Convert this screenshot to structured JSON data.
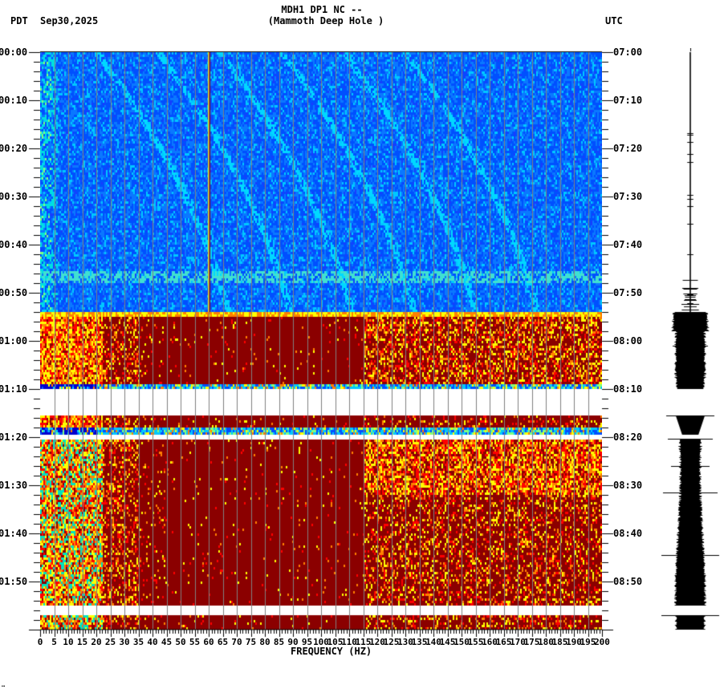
{
  "header": {
    "title_line1": "MDH1 DP1 NC --",
    "title_line2": "(Mammoth Deep Hole )",
    "timezone_left": "PDT",
    "date": "Sep30,2025",
    "timezone_right": "UTC"
  },
  "footer": {
    "corner_mark": "…"
  },
  "chart_data": {
    "type": "heatmap",
    "title": "MDH1 DP1 NC -- (Mammoth Deep Hole )",
    "subtitle": "Sep30,2025",
    "xlabel": "FREQUENCY (HZ)",
    "ylabel_left": "PDT",
    "ylabel_right": "UTC",
    "xlim": [
      0,
      200
    ],
    "x_ticks": [
      "0",
      "5",
      "10",
      "15",
      "20",
      "25",
      "30",
      "35",
      "40",
      "45",
      "50",
      "55",
      "60",
      "65",
      "70",
      "75",
      "80",
      "85",
      "90",
      "95",
      "100",
      "105",
      "110",
      "115",
      "120",
      "125",
      "130",
      "135",
      "140",
      "145",
      "150",
      "155",
      "160",
      "165",
      "170",
      "175",
      "180",
      "185",
      "190",
      "195",
      "200"
    ],
    "y_ticks_left": [
      "00:00",
      "00:10",
      "00:20",
      "00:30",
      "00:40",
      "00:50",
      "01:00",
      "01:10",
      "01:20",
      "01:30",
      "01:40",
      "01:50"
    ],
    "y_ticks_right": [
      "07:00",
      "07:10",
      "07:20",
      "07:30",
      "07:40",
      "07:50",
      "08:00",
      "08:10",
      "08:20",
      "08:30",
      "08:40",
      "08:50"
    ],
    "time_range_minutes": [
      0,
      120
    ],
    "grid": "vertical every 5 Hz",
    "colormap": [
      "#00008b",
      "#0050ff",
      "#00c8ff",
      "#80ff80",
      "#ffff00",
      "#ff8000",
      "#ff0000",
      "#8b0000"
    ],
    "segments": [
      {
        "start_min": 0,
        "end_min": 54,
        "level": "low",
        "color": "blue",
        "note": "quiet background, 60 Hz line, faint curving harmonics"
      },
      {
        "start_min": 54,
        "end_min": 69,
        "level": "high",
        "color": "dark-red",
        "note": "strong noise, yellow/orange energy 0-35 Hz and 120-200 Hz"
      },
      {
        "start_min": 69,
        "end_min": 70,
        "level": "medium",
        "color": "blue-cyan"
      },
      {
        "start_min": 70,
        "end_min": 75.5,
        "level": "gap",
        "color": "white"
      },
      {
        "start_min": 75.5,
        "end_min": 78,
        "level": "high",
        "color": "dark-red"
      },
      {
        "start_min": 78,
        "end_min": 79.5,
        "level": "medium",
        "color": "cyan"
      },
      {
        "start_min": 79.5,
        "end_min": 80.3,
        "level": "gap",
        "color": "white"
      },
      {
        "start_min": 80.3,
        "end_min": 115,
        "level": "high",
        "color": "dark-red",
        "note": "yellow energy 5-25 Hz and 120-200 Hz near 01:20-01:30"
      },
      {
        "start_min": 115,
        "end_min": 117,
        "level": "gap",
        "color": "white"
      },
      {
        "start_min": 117,
        "end_min": 120,
        "level": "high",
        "color": "dark-red"
      }
    ],
    "seismogram": {
      "quiet_until_min": 54,
      "gaps_min": [
        [
          70,
          75.5
        ],
        [
          79.5,
          80.3
        ],
        [
          115,
          117
        ]
      ]
    }
  }
}
